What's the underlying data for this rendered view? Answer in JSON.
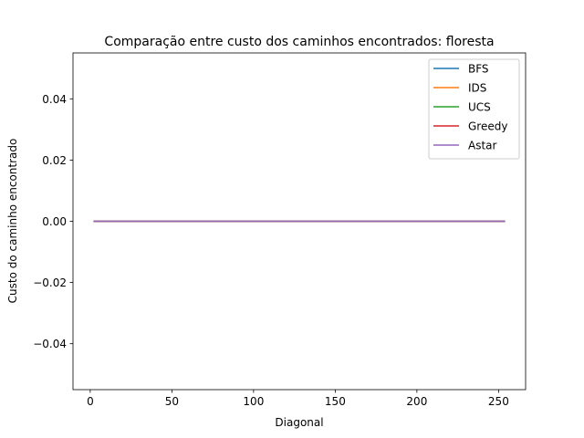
{
  "chart_data": {
    "type": "line",
    "title": "Comparação entre custo dos caminhos encontrados: floresta",
    "xlabel": "Diagonal",
    "ylabel": "Custo do caminho encontrado",
    "xlim": [
      -10.55,
      266.55
    ],
    "ylim": [
      -0.055,
      0.055
    ],
    "x_ticks": [
      0,
      50,
      100,
      150,
      200,
      250
    ],
    "x_tick_labels": [
      "0",
      "50",
      "100",
      "150",
      "200",
      "250"
    ],
    "y_ticks": [
      -0.04,
      -0.02,
      0.0,
      0.02,
      0.04
    ],
    "y_tick_labels": [
      "−0.04",
      "−0.02",
      "0.00",
      "0.02",
      "0.04"
    ],
    "grid": false,
    "legend_position": "top-right",
    "x": [
      2,
      254
    ],
    "series": [
      {
        "name": "BFS",
        "color": "#1f77b4",
        "values": [
          0,
          0
        ]
      },
      {
        "name": "IDS",
        "color": "#ff7f0e",
        "values": [
          0,
          0
        ]
      },
      {
        "name": "UCS",
        "color": "#2ca02c",
        "values": [
          0,
          0
        ]
      },
      {
        "name": "Greedy",
        "color": "#d62728",
        "values": [
          0,
          0
        ]
      },
      {
        "name": "Astar",
        "color": "#9467bd",
        "values": [
          0,
          0
        ]
      }
    ]
  }
}
